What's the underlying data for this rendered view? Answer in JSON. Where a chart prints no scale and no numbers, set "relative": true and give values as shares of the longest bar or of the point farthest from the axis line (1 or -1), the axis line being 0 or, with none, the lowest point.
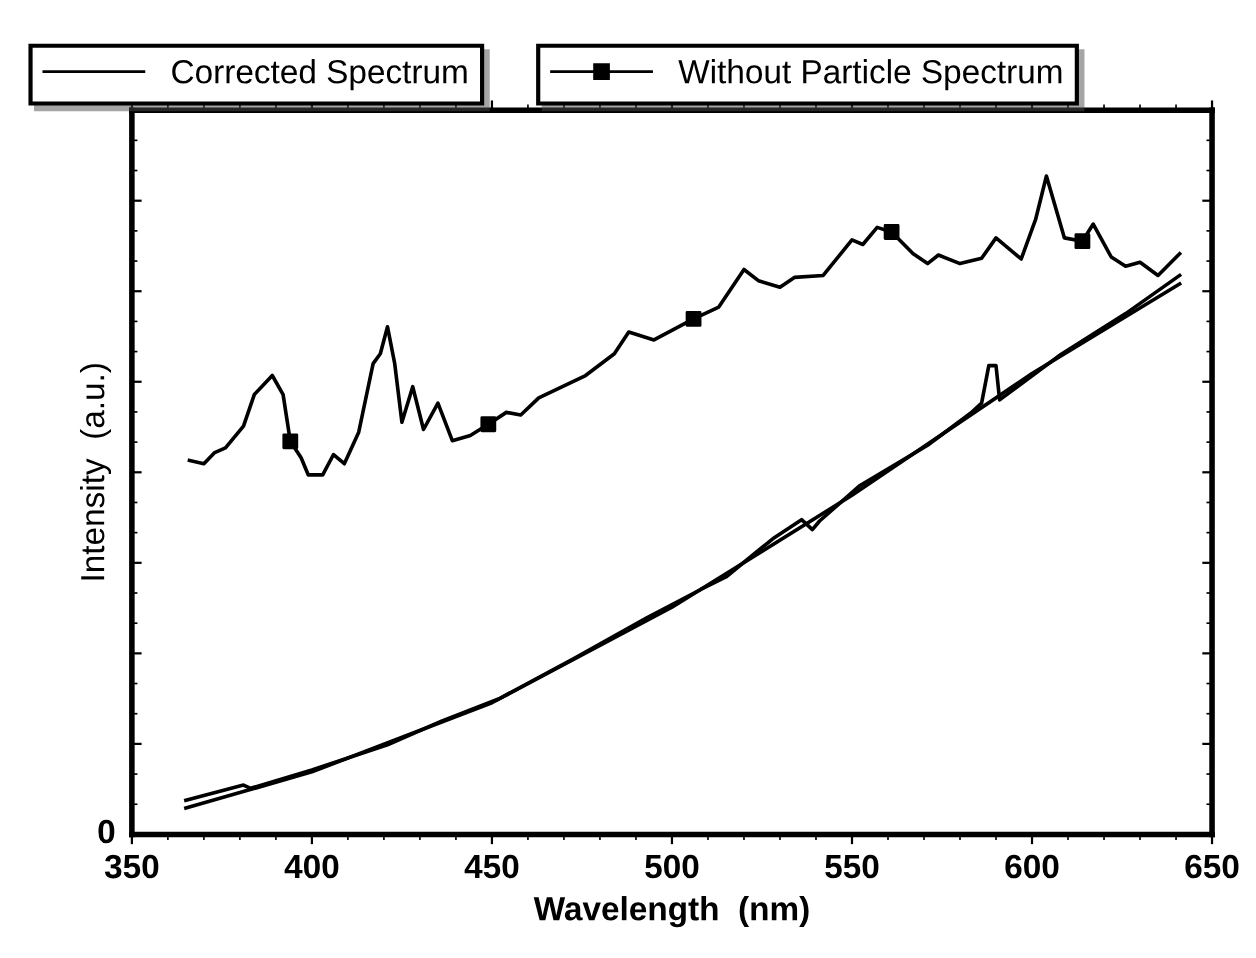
{
  "chart_data": {
    "type": "line",
    "xlabel": "Wavelength  (nm)",
    "ylabel": "Intensity  (a.u.)",
    "relative": true,
    "xlim": [
      350,
      650
    ],
    "xticks": [
      350,
      400,
      450,
      500,
      550,
      600,
      650
    ],
    "legend": "top",
    "grid": false,
    "annotations": [
      "0"
    ],
    "series": [
      {
        "name": "Corrected Spectrum",
        "color": "#000000",
        "marker": "none",
        "x": [
          365,
          381,
          383,
          400,
          421,
          436,
          452,
          473,
          493,
          508,
          515,
          528,
          536,
          539,
          541,
          552,
          571,
          583,
          586,
          588,
          590,
          591,
          608,
          626,
          641
        ],
        "values": [
          0.052,
          0.075,
          0.07,
          0.098,
          0.136,
          0.172,
          0.206,
          0.268,
          0.329,
          0.372,
          0.391,
          0.449,
          0.478,
          0.463,
          0.476,
          0.529,
          0.591,
          0.64,
          0.655,
          0.712,
          0.712,
          0.66,
          0.729,
          0.791,
          0.849
        ]
      },
      {
        "name": "Without Particle Spectrum",
        "color": "#000000",
        "x": [
          366,
          370,
          373,
          376,
          381,
          384,
          389,
          392,
          394,
          397,
          399,
          403,
          406,
          409,
          413,
          417,
          419,
          421,
          423,
          425,
          428,
          431,
          435,
          439,
          444,
          449,
          454,
          458,
          463,
          476,
          484,
          488,
          495,
          506,
          513,
          520,
          524,
          530,
          534,
          542,
          550,
          553,
          557,
          561,
          567,
          571,
          574,
          580,
          586,
          590,
          597,
          601,
          604,
          609,
          614,
          617,
          622,
          626,
          630,
          635,
          641
        ],
        "values": [
          0.568,
          0.563,
          0.58,
          0.587,
          0.62,
          0.668,
          0.697,
          0.668,
          0.597,
          0.572,
          0.546,
          0.546,
          0.577,
          0.563,
          0.611,
          0.715,
          0.73,
          0.771,
          0.715,
          0.626,
          0.68,
          0.615,
          0.655,
          0.598,
          0.606,
          0.623,
          0.641,
          0.637,
          0.663,
          0.697,
          0.73,
          0.763,
          0.751,
          0.783,
          0.801,
          0.858,
          0.841,
          0.831,
          0.846,
          0.849,
          0.903,
          0.896,
          0.922,
          0.915,
          0.882,
          0.867,
          0.88,
          0.867,
          0.875,
          0.906,
          0.874,
          0.934,
          1.0,
          0.906,
          0.901,
          0.927,
          0.877,
          0.863,
          0.869,
          0.849,
          0.882
        ]
      },
      {
        "type": "scatter",
        "color": "#000000",
        "marker": "square",
        "x": [
          394,
          449,
          506,
          561,
          614
        ],
        "values": [
          0.597,
          0.623,
          0.783,
          0.915,
          0.901
        ]
      },
      {
        "color": "#000000",
        "marker": "none",
        "x": [
          365,
          400,
          450,
          500,
          550,
          600,
          641
        ],
        "values": [
          0.04,
          0.095,
          0.2,
          0.345,
          0.515,
          0.7,
          0.836
        ]
      }
    ]
  }
}
